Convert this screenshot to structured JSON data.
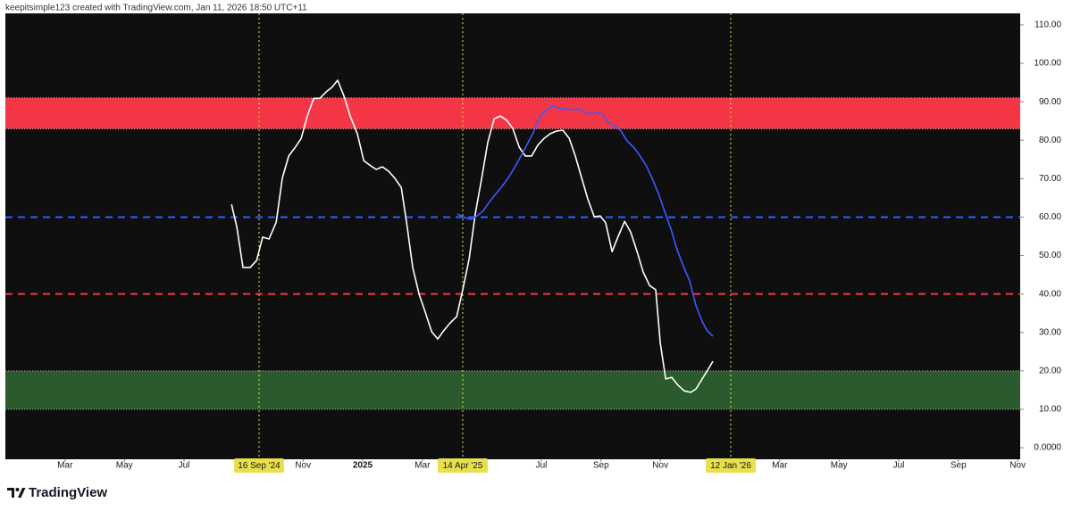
{
  "header": "keepitsimple123 created with TradingView.com, Jan 11, 2026 18:50 UTC+11",
  "brand": "TradingView",
  "chart_data": {
    "type": "line",
    "background": "#0f0f0f",
    "xlim": [
      2024.0,
      2026.84
    ],
    "ylim": [
      -3,
      113
    ],
    "xticks": [
      {
        "value": 2024.167,
        "label": "Mar"
      },
      {
        "value": 2024.333,
        "label": "May"
      },
      {
        "value": 2024.5,
        "label": "Jul"
      },
      {
        "value": 2024.833,
        "label": "Nov"
      },
      2025,
      {
        "value": 2025.167,
        "label": "Mar"
      },
      {
        "value": 2025.5,
        "label": "Jul"
      },
      {
        "value": 2025.667,
        "label": "Sep"
      },
      {
        "value": 2025.833,
        "label": "Nov"
      },
      {
        "value": 2026.167,
        "label": "Mar"
      },
      {
        "value": 2026.333,
        "label": "May"
      },
      {
        "value": 2026.5,
        "label": "Jul"
      },
      {
        "value": 2026.667,
        "label": "Sep"
      },
      {
        "value": 2026.833,
        "label": "Nov"
      }
    ],
    "yticks": [
      {
        "value": 110,
        "label": "110.00"
      },
      {
        "value": 100,
        "label": "100.00"
      },
      {
        "value": 90,
        "label": "90.00"
      },
      {
        "value": 80,
        "label": "80.00"
      },
      {
        "value": 70,
        "label": "70.00"
      },
      {
        "value": 60,
        "label": "60.00"
      },
      {
        "value": 50,
        "label": "50.00"
      },
      {
        "value": 40,
        "label": "40.00"
      },
      {
        "value": 30,
        "label": "30.00"
      },
      {
        "value": 20,
        "label": "20.00"
      },
      {
        "value": 10,
        "label": "10.00"
      },
      {
        "value": 0,
        "label": "0.0000"
      }
    ],
    "bands": [
      {
        "range": [
          83,
          91
        ],
        "color": "#f23645"
      },
      {
        "range": [
          10,
          20
        ],
        "color": "#2a5a2e"
      }
    ],
    "hlines": [
      {
        "value": 60,
        "color": "#2962ff"
      },
      {
        "value": 40,
        "color": "#f23645"
      }
    ],
    "vlines": [
      {
        "x": 2024.71,
        "label": "16 Sep '24"
      },
      {
        "x": 2025.28,
        "label": "14 Apr '25"
      },
      {
        "x": 2026.03,
        "label": "12 Jan '26"
      }
    ],
    "vline_color": "#e8e04a",
    "series": [
      {
        "color": "#ffffff",
        "x": [
          2024.633,
          2024.648,
          2024.665,
          2024.685,
          2024.703,
          2024.72,
          2024.738,
          2024.758,
          2024.775,
          2024.793,
          2024.81,
          2024.828,
          2024.845,
          2024.863,
          2024.88,
          2024.898,
          2024.913,
          2024.93,
          2024.948,
          2024.965,
          2024.985,
          2025.003,
          2025.02,
          2025.038,
          2025.055,
          2025.073,
          2025.09,
          2025.108,
          2025.123,
          2025.14,
          2025.158,
          2025.175,
          2025.193,
          2025.21,
          2025.228,
          2025.245,
          2025.263,
          2025.28,
          2025.298,
          2025.315,
          2025.333,
          2025.35,
          2025.368,
          2025.385,
          2025.403,
          2025.42,
          2025.438,
          2025.455,
          2025.473,
          2025.49,
          2025.508,
          2025.525,
          2025.543,
          2025.56,
          2025.578,
          2025.595,
          2025.613,
          2025.63,
          2025.648,
          2025.665,
          2025.68,
          2025.698,
          2025.715,
          2025.733,
          2025.75,
          2025.768,
          2025.785,
          2025.803,
          2025.82,
          2025.833,
          2025.848,
          2025.865,
          2025.883,
          2025.9,
          2025.918,
          2025.933,
          2025.95,
          2025.968,
          2025.98
        ],
        "values": [
          63.3,
          57.3,
          46.9,
          46.9,
          48.7,
          54.8,
          54.3,
          58.7,
          70.1,
          75.9,
          78.0,
          80.5,
          86.3,
          90.9,
          90.9,
          92.6,
          93.7,
          95.6,
          91.4,
          86.3,
          81.7,
          74.7,
          73.5,
          72.4,
          73.1,
          71.9,
          70.1,
          67.7,
          58.5,
          46.9,
          39.9,
          35.3,
          30.2,
          28.3,
          30.6,
          32.5,
          34.1,
          41.1,
          49.2,
          60.8,
          70.1,
          79.4,
          85.6,
          86.3,
          85.2,
          83.1,
          78.2,
          75.9,
          75.9,
          78.7,
          80.5,
          81.7,
          82.4,
          82.6,
          80.5,
          75.9,
          70.1,
          64.7,
          60.1,
          60.3,
          58.5,
          51.0,
          55.0,
          58.9,
          56.1,
          51.0,
          45.7,
          42.2,
          41.1,
          27.1,
          17.9,
          18.3,
          16.2,
          14.8,
          14.4,
          15.3,
          17.9,
          20.6,
          22.5
        ]
      },
      {
        "color": "#3d5afe",
        "x": [
          2025.265,
          2025.285,
          2025.303,
          2025.32,
          2025.338,
          2025.355,
          2025.373,
          2025.39,
          2025.408,
          2025.425,
          2025.443,
          2025.46,
          2025.478,
          2025.495,
          2025.513,
          2025.53,
          2025.548,
          2025.565,
          2025.583,
          2025.6,
          2025.618,
          2025.635,
          2025.653,
          2025.67,
          2025.688,
          2025.705,
          2025.723,
          2025.74,
          2025.758,
          2025.775,
          2025.793,
          2025.81,
          2025.828,
          2025.845,
          2025.863,
          2025.88,
          2025.898,
          2025.915,
          2025.933,
          2025.95,
          2025.963,
          2025.98
        ],
        "values": [
          60.8,
          59.9,
          59.4,
          60.3,
          61.7,
          64.0,
          66.1,
          68.0,
          70.3,
          72.9,
          75.9,
          78.9,
          82.1,
          86.1,
          87.7,
          88.9,
          88.4,
          88.2,
          87.9,
          88.2,
          87.5,
          86.8,
          87.2,
          86.8,
          84.5,
          83.8,
          82.4,
          79.8,
          78.2,
          76.1,
          73.5,
          70.1,
          66.1,
          61.5,
          56.8,
          51.5,
          47.1,
          43.4,
          36.9,
          32.9,
          30.6,
          29.0
        ]
      }
    ]
  }
}
